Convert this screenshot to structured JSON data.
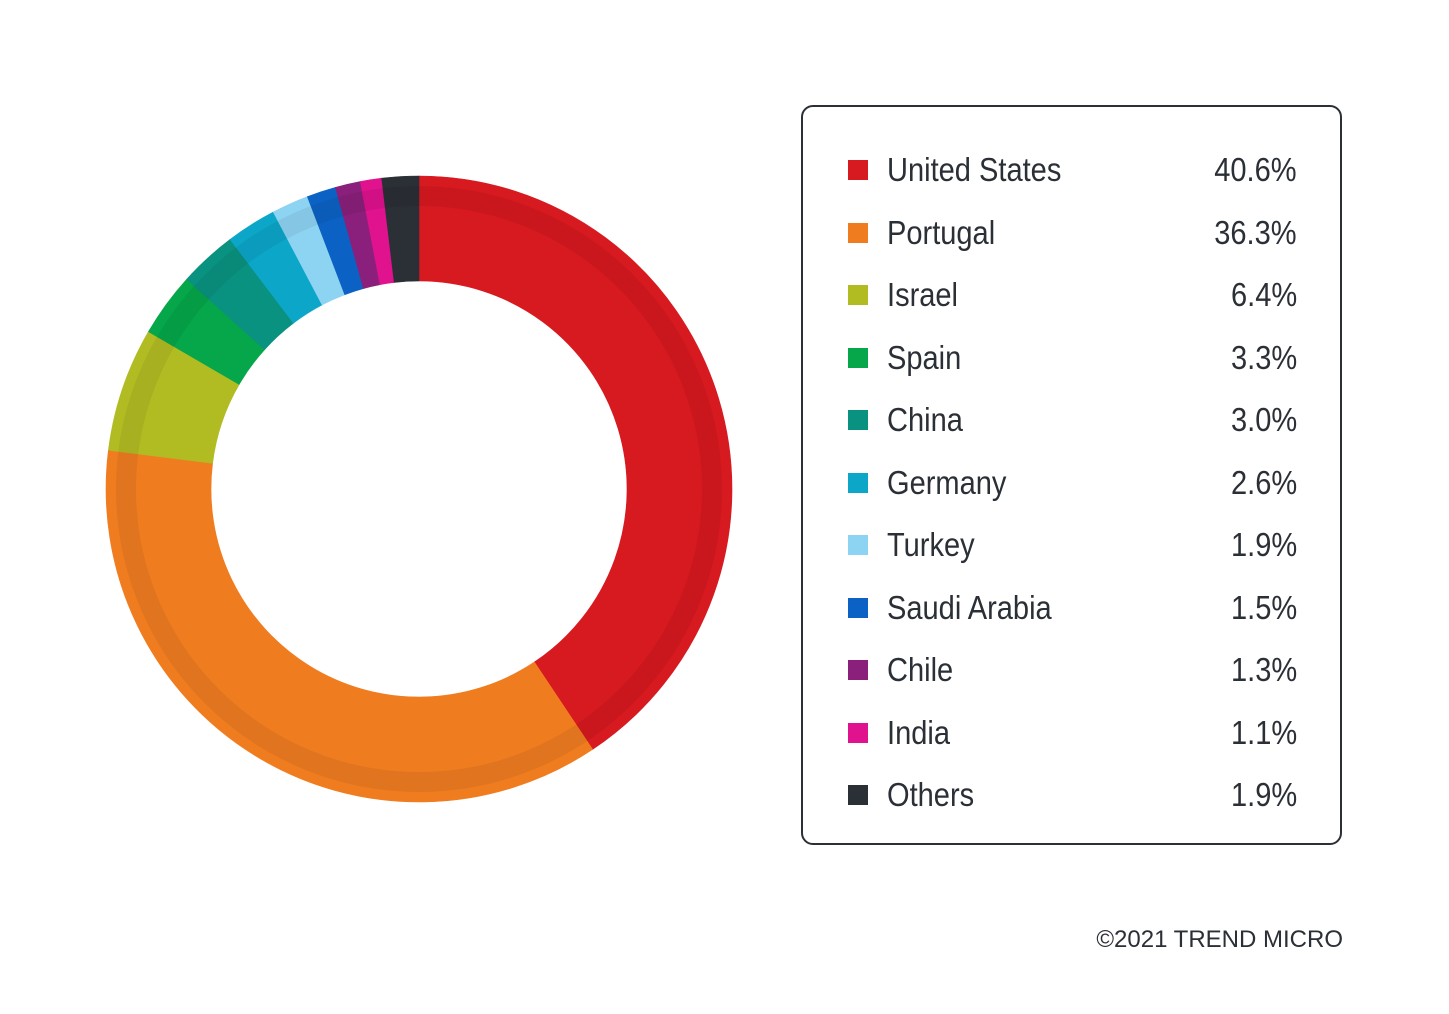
{
  "chart_data": {
    "type": "pie",
    "donut": true,
    "categories": [
      "United States",
      "Portugal",
      "Israel",
      "Spain",
      "China",
      "Germany",
      "Turkey",
      "Saudi Arabia",
      "Chile",
      "India",
      "Others"
    ],
    "values": [
      40.6,
      36.3,
      6.4,
      3.3,
      3.0,
      2.6,
      1.9,
      1.5,
      1.3,
      1.1,
      1.9
    ],
    "value_labels": [
      "40.6%",
      "36.3%",
      "6.4%",
      "3.3%",
      "3.0%",
      "2.6%",
      "1.9%",
      "1.5%",
      "1.3%",
      "1.1%",
      "1.9%"
    ],
    "colors": [
      "#d71920",
      "#f07c20",
      "#b1bb22",
      "#06a64b",
      "#0a9280",
      "#0ca6c9",
      "#8dd3f2",
      "#0b62c4",
      "#8b1f7c",
      "#e0128e",
      "#2b2f36"
    ],
    "start_angle": "12 o'clock",
    "direction": "clockwise",
    "legend_position": "right"
  },
  "footer": {
    "copyright": "©2021 TREND MICRO"
  }
}
